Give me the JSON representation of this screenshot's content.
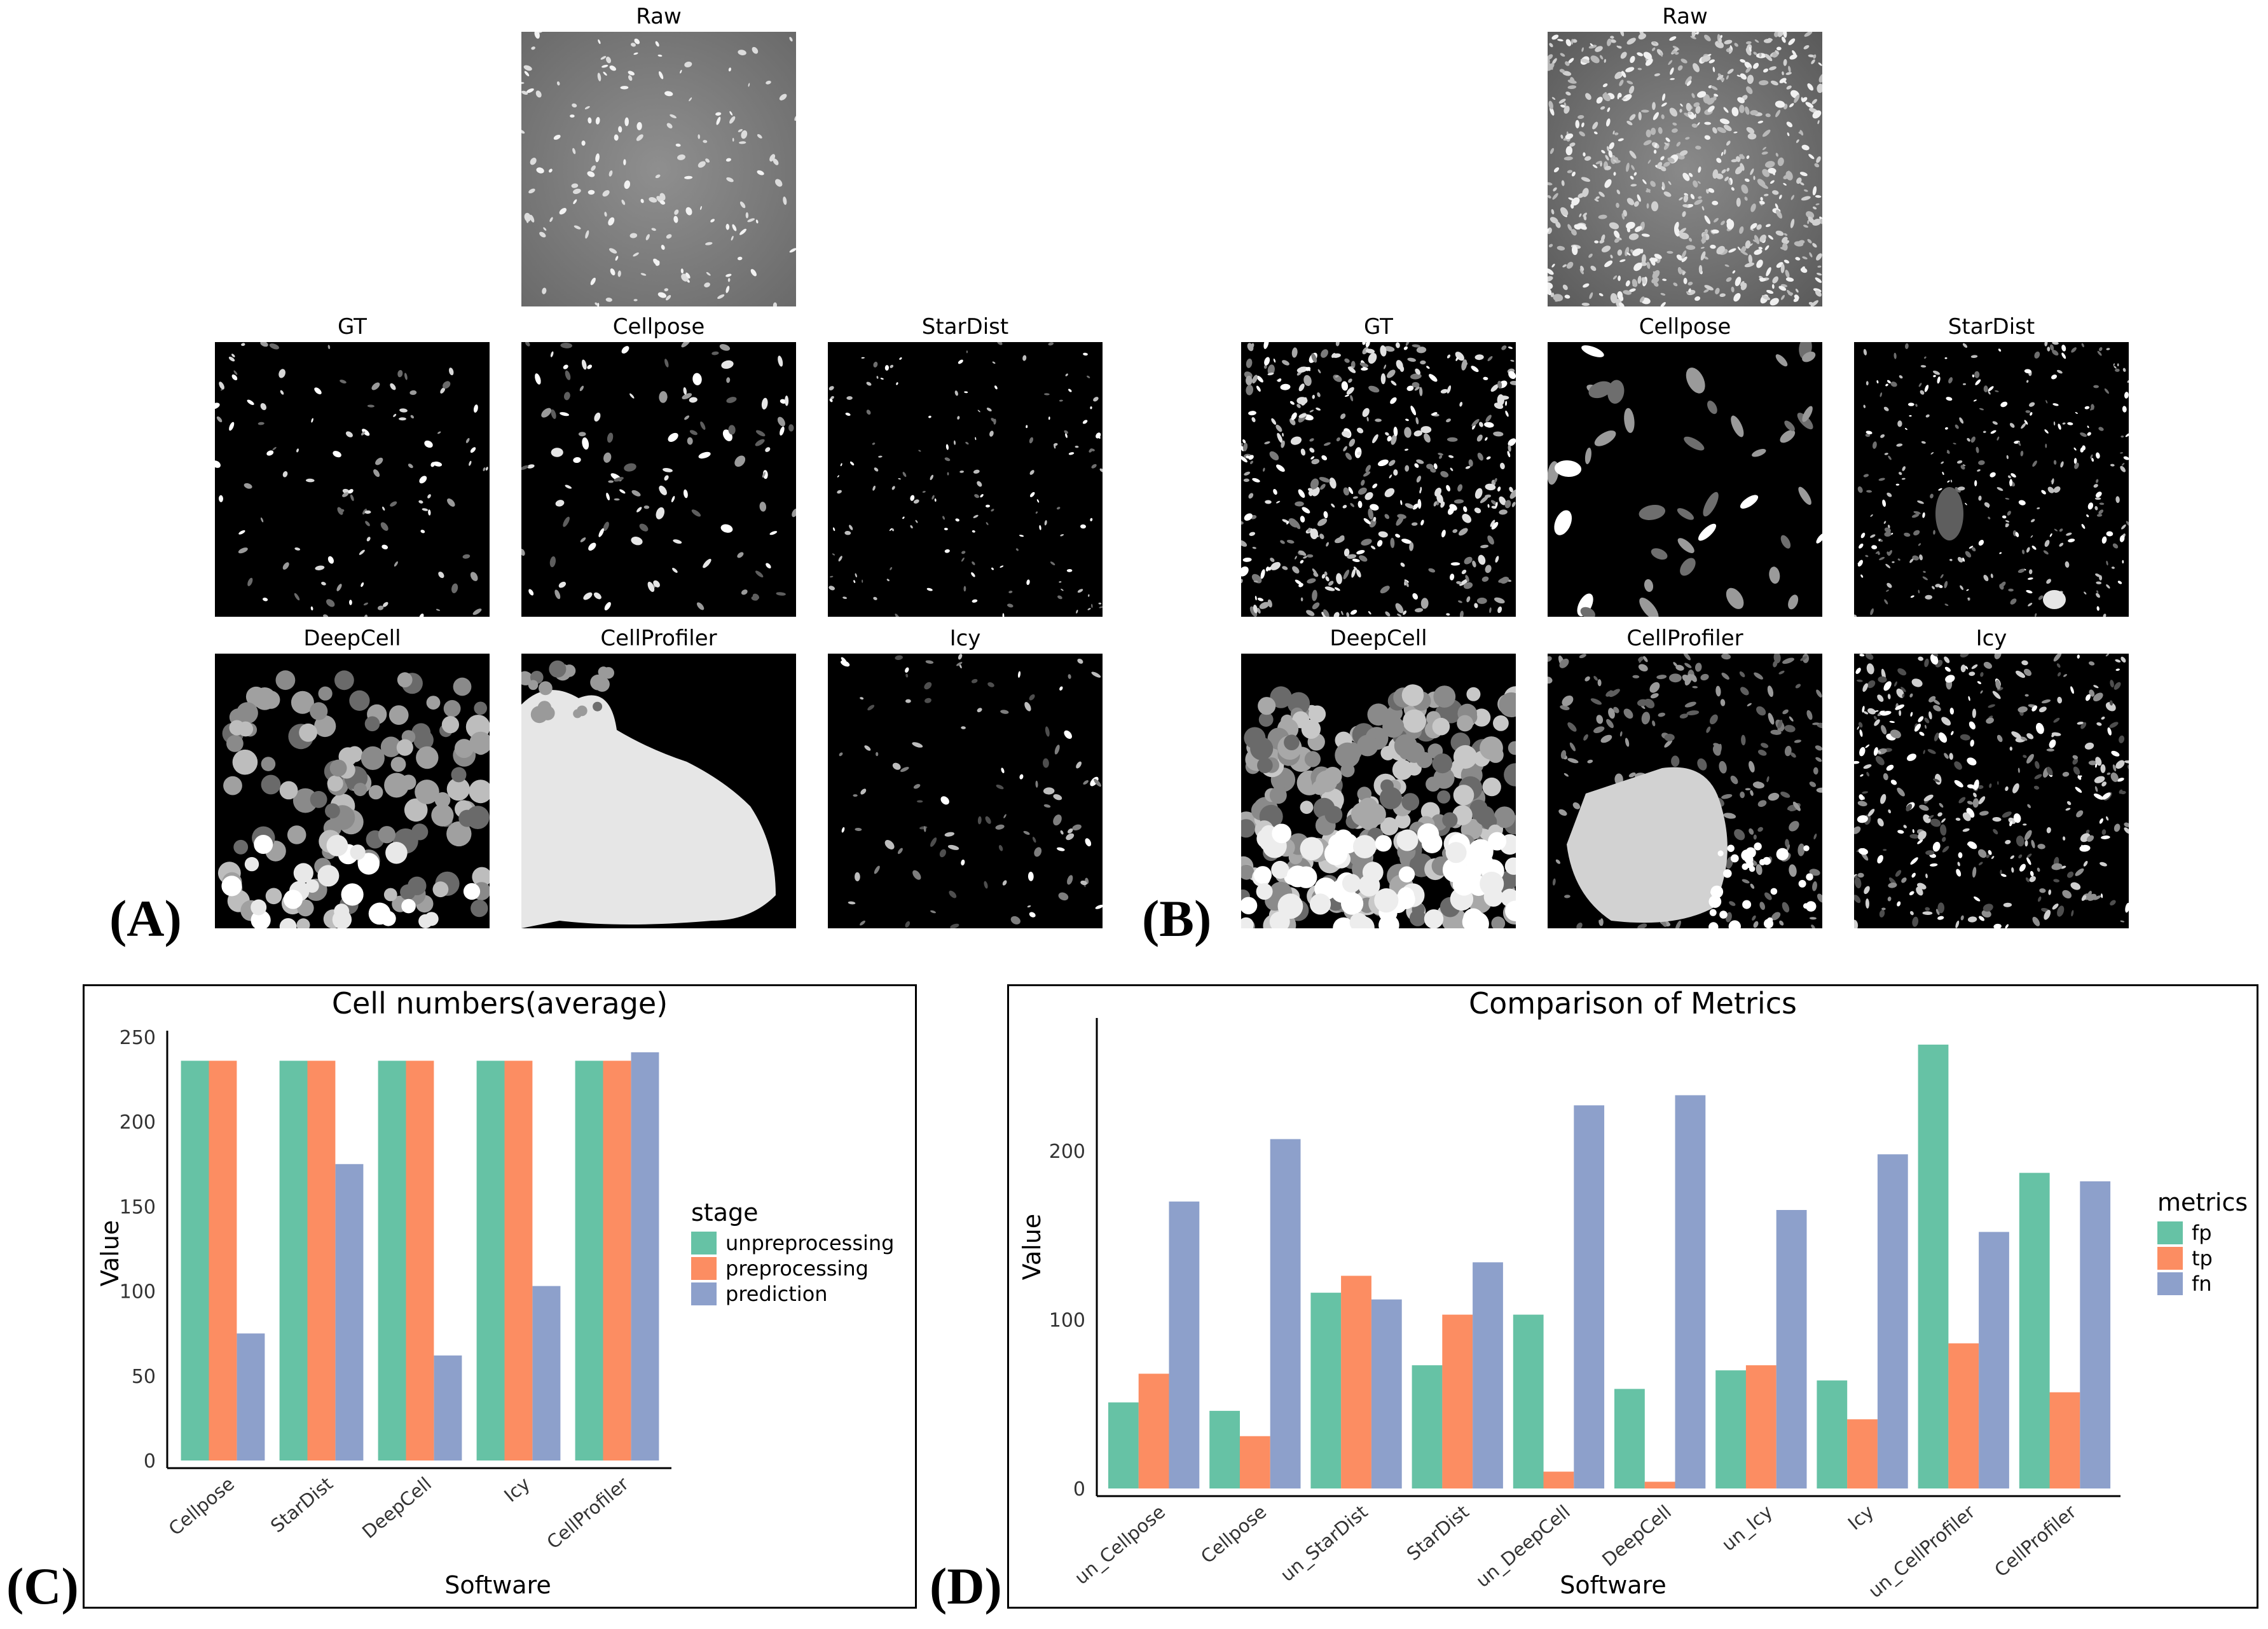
{
  "panels": {
    "A": {
      "letter": "(A)",
      "titles": {
        "raw": "Raw",
        "gt": "GT",
        "cellpose": "Cellpose",
        "stardist": "StarDist",
        "deepcell": "DeepCell",
        "cellprofiler": "CellProfiler",
        "icy": "Icy"
      }
    },
    "B": {
      "letter": "(B)",
      "titles": {
        "raw": "Raw",
        "gt": "GT",
        "cellpose": "Cellpose",
        "stardist": "StarDist",
        "deepcell": "DeepCell",
        "cellprofiler": "CellProfiler",
        "icy": "Icy"
      }
    },
    "C": {
      "letter": "(C)"
    },
    "D": {
      "letter": "(D)"
    }
  },
  "colors": {
    "green": "#66c2a5",
    "orange": "#fc8d62",
    "blue": "#8da0cb"
  },
  "chart_data": [
    {
      "type": "bar",
      "title": "Cell numbers(average)",
      "xlabel": "Software",
      "ylabel": "Value",
      "categories": [
        "Cellpose",
        "StarDist",
        "DeepCell",
        "Icy",
        "CellProfiler"
      ],
      "ylim": [
        0,
        250
      ],
      "yticks": [
        0,
        50,
        100,
        150,
        200,
        250
      ],
      "legend_title": "stage",
      "legend_position": "right",
      "grid": false,
      "series": [
        {
          "name": "unpreprocessing",
          "color": "#66c2a5",
          "values": [
            236,
            236,
            236,
            236,
            236
          ]
        },
        {
          "name": "preprocessing",
          "color": "#fc8d62",
          "values": [
            236,
            236,
            236,
            236,
            236
          ]
        },
        {
          "name": "prediction",
          "color": "#8da0cb",
          "values": [
            75,
            175,
            62,
            103,
            241
          ]
        }
      ]
    },
    {
      "type": "bar",
      "title": "Comparison of Metrics",
      "xlabel": "Software",
      "ylabel": "Value",
      "categories": [
        "un_Cellpose",
        "Cellpose",
        "un_StarDist",
        "StarDist",
        "un_DeepCell",
        "DeepCell",
        "un_Icy",
        "Icy",
        "un_CellProfiler",
        "CellProfiler"
      ],
      "ylim": [
        0,
        275
      ],
      "yticks": [
        0,
        100,
        200
      ],
      "legend_title": "metrics",
      "legend_position": "right",
      "grid": false,
      "series": [
        {
          "name": "fp",
          "color": "#66c2a5",
          "values": [
            51,
            46,
            116,
            73,
            103,
            59,
            70,
            64,
            263,
            187
          ]
        },
        {
          "name": "tp",
          "color": "#fc8d62",
          "values": [
            68,
            31,
            126,
            103,
            10,
            4,
            73,
            41,
            86,
            57
          ]
        },
        {
          "name": "fn",
          "color": "#8da0cb",
          "values": [
            170,
            207,
            112,
            134,
            227,
            233,
            165,
            198,
            152,
            182
          ]
        }
      ]
    }
  ]
}
